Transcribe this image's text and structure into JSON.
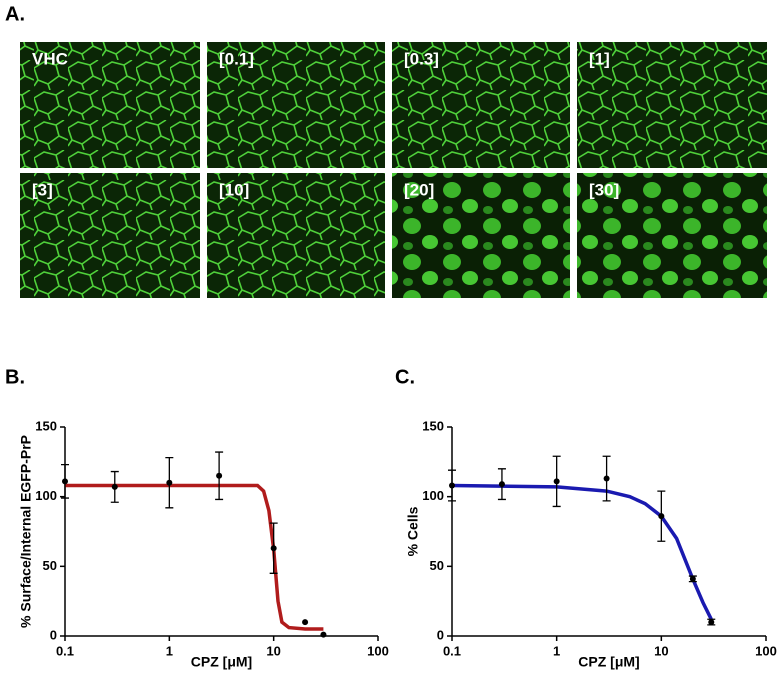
{
  "panel_a": {
    "label": "A.",
    "images": [
      "VHC",
      "[0.1]",
      "[0.3]",
      "[1]",
      "[3]",
      "[10]",
      "[20]",
      "[30]"
    ]
  },
  "chart_data": [
    {
      "type": "scatter",
      "label": "B.",
      "x_label": "CPZ [μM]",
      "y_label": "% Surface/Internal EGFP-PrP",
      "xscale": "log",
      "xlim": [
        0.1,
        100
      ],
      "xticks": [
        0.1,
        1,
        10,
        100
      ],
      "ylim": [
        0,
        150
      ],
      "yticks": [
        0,
        50,
        100,
        150
      ],
      "color": "#000000",
      "x": [
        0.1,
        0.3,
        1,
        3,
        10,
        20,
        30
      ],
      "values": [
        111,
        107,
        110,
        115,
        63,
        10,
        1
      ],
      "errors": [
        12,
        11,
        18,
        17,
        18,
        null,
        null
      ],
      "fit": {
        "color": "#b01c1c",
        "x": [
          0.1,
          1,
          7,
          8,
          9,
          10,
          11,
          12,
          14,
          20,
          30
        ],
        "values": [
          108,
          108,
          108,
          104,
          90,
          62,
          25,
          10,
          6,
          5,
          5
        ]
      }
    },
    {
      "type": "scatter",
      "label": "C.",
      "x_label": "CPZ [μM]",
      "y_label": "% Cells",
      "xscale": "log",
      "xlim": [
        0.1,
        100
      ],
      "xticks": [
        0.1,
        1,
        10,
        100
      ],
      "ylim": [
        0,
        150
      ],
      "yticks": [
        0,
        50,
        100,
        150
      ],
      "color": "#000000",
      "x": [
        0.1,
        0.3,
        1,
        3,
        10,
        20,
        30
      ],
      "values": [
        108,
        109,
        111,
        113,
        86,
        41,
        10
      ],
      "errors": [
        11,
        11,
        18,
        16,
        18,
        2,
        2
      ],
      "fit": {
        "color": "#1a1ab0",
        "x": [
          0.1,
          1,
          3,
          5,
          7,
          10,
          14,
          20,
          25,
          30
        ],
        "values": [
          108,
          107,
          104,
          100,
          95,
          86,
          70,
          41,
          24,
          12
        ]
      }
    }
  ]
}
